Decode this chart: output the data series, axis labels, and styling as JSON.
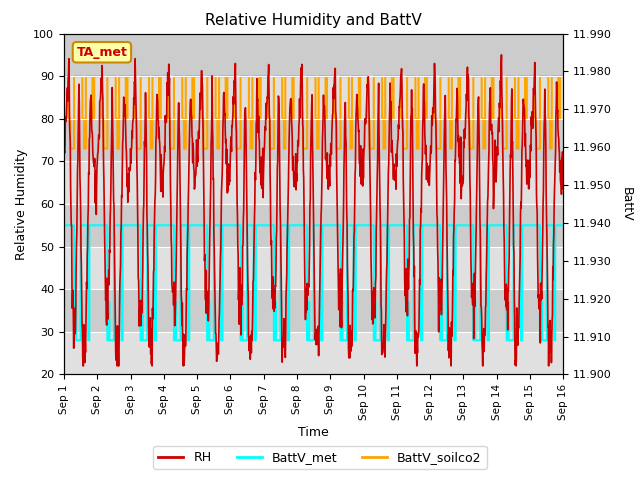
{
  "title": "Relative Humidity and BattV",
  "xlabel": "Time",
  "ylabel_left": "Relative Humidity",
  "ylabel_right": "BattV",
  "ylim_left": [
    20,
    100
  ],
  "ylim_right": [
    11.9,
    11.99
  ],
  "bg_color": "#d8d8d8",
  "stripe_light": "#e8e8e8",
  "stripe_dark": "#d0d0d0",
  "annotation_text": "TA_met",
  "annotation_color": "#cc0000",
  "annotation_bg": "#ffffaa",
  "annotation_border": "#cc8800",
  "rh_color": "#cc0000",
  "battv_met_color": "cyan",
  "battv_soilco2_color": "orange",
  "legend_rh_label": "RH",
  "legend_met_label": "BattV_met",
  "legend_soilco2_label": "BattV_soilco2",
  "x_ticks": [
    "Sep 1",
    "Sep 2",
    "Sep 3",
    "Sep 4",
    "Sep 5",
    "Sep 6",
    "Sep 7",
    "Sep 8",
    "Sep 9",
    "Sep 10",
    "Sep 11",
    "Sep 12",
    "Sep 13",
    "Sep 14",
    "Sep 15",
    "Sep 16"
  ],
  "n_days": 15,
  "figsize": [
    6.4,
    4.8
  ],
  "dpi": 100
}
